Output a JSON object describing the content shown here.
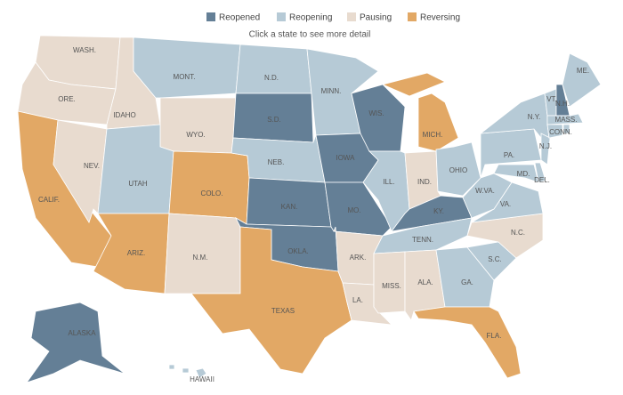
{
  "legend": {
    "items": [
      {
        "label": "Reopened",
        "color": "#647f96"
      },
      {
        "label": "Reopening",
        "color": "#b6cad6"
      },
      {
        "label": "Pausing",
        "color": "#e8dbcf"
      },
      {
        "label": "Reversing",
        "color": "#e2a865"
      }
    ]
  },
  "subtitle": "Click a state to see more detail",
  "states": [
    {
      "label": "WASH.",
      "status": "Pausing"
    },
    {
      "label": "ORE.",
      "status": "Pausing"
    },
    {
      "label": "CALIF.",
      "status": "Reversing"
    },
    {
      "label": "NEV.",
      "status": "Pausing"
    },
    {
      "label": "IDAHO",
      "status": "Pausing"
    },
    {
      "label": "MONT.",
      "status": "Reopening"
    },
    {
      "label": "WYO.",
      "status": "Pausing"
    },
    {
      "label": "UTAH",
      "status": "Reopening"
    },
    {
      "label": "ARIZ.",
      "status": "Reversing"
    },
    {
      "label": "COLO.",
      "status": "Reversing"
    },
    {
      "label": "N.M.",
      "status": "Pausing"
    },
    {
      "label": "N.D.",
      "status": "Reopening"
    },
    {
      "label": "S.D.",
      "status": "Reopened"
    },
    {
      "label": "NEB.",
      "status": "Reopening"
    },
    {
      "label": "KAN.",
      "status": "Reopened"
    },
    {
      "label": "OKLA.",
      "status": "Reopened"
    },
    {
      "label": "TEXAS",
      "status": "Reversing"
    },
    {
      "label": "MINN.",
      "status": "Reopening"
    },
    {
      "label": "IOWA",
      "status": "Reopened"
    },
    {
      "label": "MO.",
      "status": "Reopened"
    },
    {
      "label": "ARK.",
      "status": "Pausing"
    },
    {
      "label": "LA.",
      "status": "Pausing"
    },
    {
      "label": "WIS.",
      "status": "Reopened"
    },
    {
      "label": "ILL.",
      "status": "Reopening"
    },
    {
      "label": "MICH.",
      "status": "Reversing"
    },
    {
      "label": "IND.",
      "status": "Pausing"
    },
    {
      "label": "OHIO",
      "status": "Reopening"
    },
    {
      "label": "KY.",
      "status": "Reopened"
    },
    {
      "label": "TENN.",
      "status": "Reopening"
    },
    {
      "label": "MISS.",
      "status": "Pausing"
    },
    {
      "label": "ALA.",
      "status": "Pausing"
    },
    {
      "label": "GA.",
      "status": "Reopening"
    },
    {
      "label": "FLA.",
      "status": "Reversing"
    },
    {
      "label": "S.C.",
      "status": "Reopening"
    },
    {
      "label": "N.C.",
      "status": "Pausing"
    },
    {
      "label": "VA.",
      "status": "Reopening"
    },
    {
      "label": "W.VA.",
      "status": "Reopening"
    },
    {
      "label": "PA.",
      "status": "Reopening"
    },
    {
      "label": "N.Y.",
      "status": "Reopening"
    },
    {
      "label": "MD.",
      "status": "Reopening"
    },
    {
      "label": "DEL.",
      "status": "Reopening"
    },
    {
      "label": "N.J.",
      "status": "Reopening"
    },
    {
      "label": "VT.",
      "status": "Reopening"
    },
    {
      "label": "N.H.",
      "status": "Reopened"
    },
    {
      "label": "ME.",
      "status": "Reopening"
    },
    {
      "label": "MASS.",
      "status": "Reopening"
    },
    {
      "label": "CONN.",
      "status": "Reopening"
    },
    {
      "status": "Reopening"
    },
    {
      "label": "ALASKA",
      "status": "Reopened"
    },
    {
      "label": "HAWAII",
      "status": "Reopening"
    }
  ]
}
